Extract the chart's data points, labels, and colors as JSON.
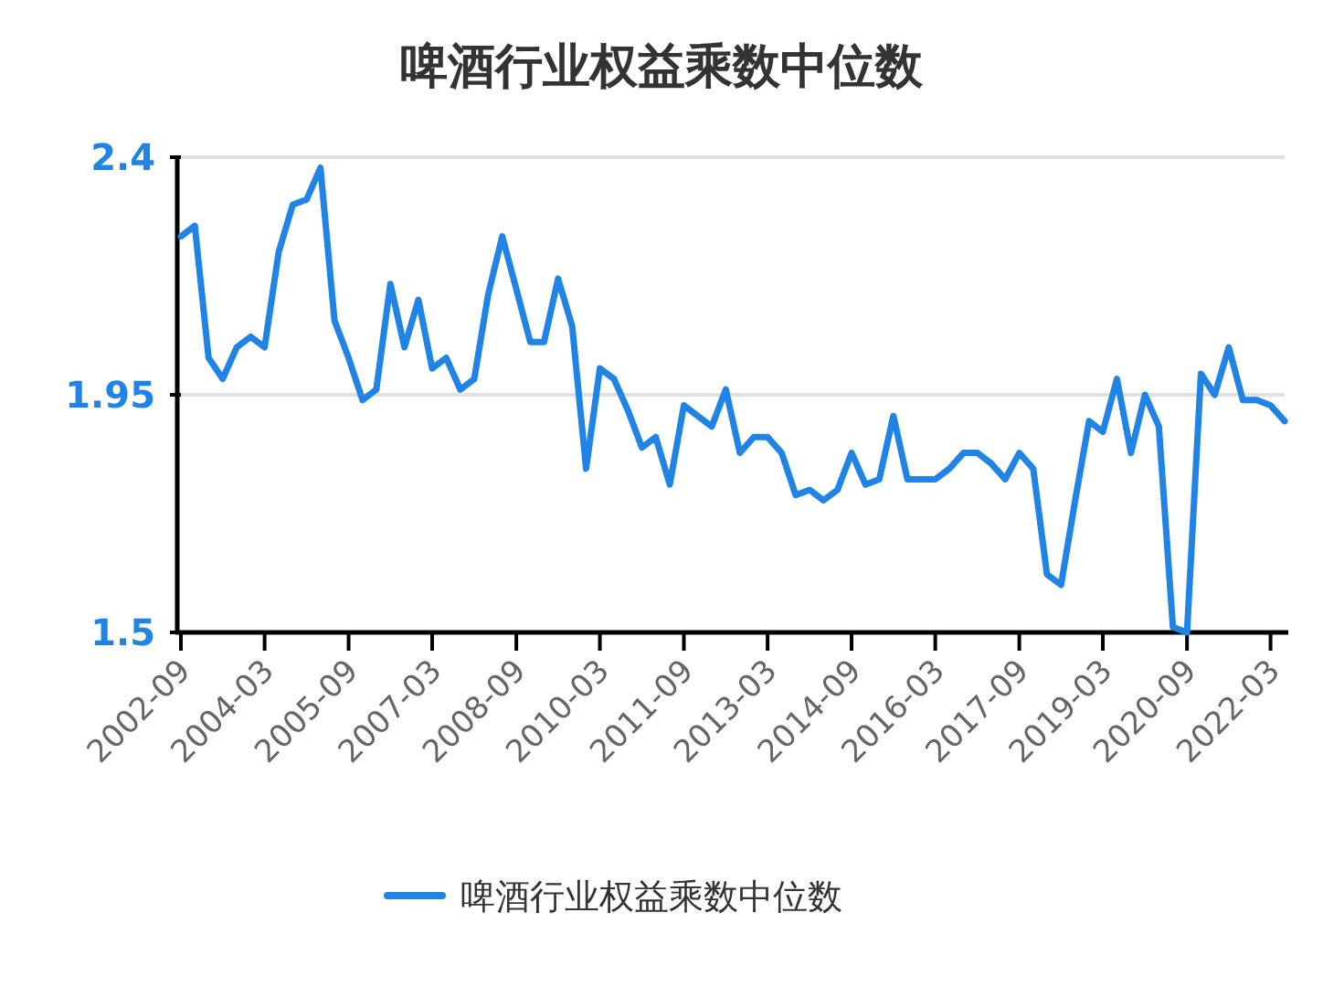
{
  "chart_data": {
    "type": "line",
    "title": "啤酒行业权益乘数中位数",
    "x": [
      "2002-09",
      "2002-12",
      "2003-03",
      "2003-06",
      "2003-09",
      "2003-12",
      "2004-03",
      "2004-06",
      "2004-09",
      "2004-12",
      "2005-03",
      "2005-06",
      "2005-09",
      "2005-12",
      "2006-03",
      "2006-06",
      "2006-09",
      "2006-12",
      "2007-03",
      "2007-06",
      "2007-09",
      "2007-12",
      "2008-03",
      "2008-06",
      "2008-09",
      "2008-12",
      "2009-03",
      "2009-06",
      "2009-09",
      "2009-12",
      "2010-03",
      "2010-06",
      "2010-09",
      "2010-12",
      "2011-03",
      "2011-06",
      "2011-09",
      "2011-12",
      "2012-03",
      "2012-06",
      "2012-09",
      "2012-12",
      "2013-03",
      "2013-06",
      "2013-09",
      "2013-12",
      "2014-03",
      "2014-06",
      "2014-09",
      "2014-12",
      "2015-03",
      "2015-06",
      "2015-09",
      "2015-12",
      "2016-03",
      "2016-06",
      "2016-09",
      "2016-12",
      "2017-03",
      "2017-06",
      "2017-09",
      "2017-12",
      "2018-03",
      "2018-06",
      "2018-09",
      "2018-12",
      "2019-03",
      "2019-06",
      "2019-09",
      "2019-12",
      "2020-03",
      "2020-06",
      "2020-09",
      "2020-12",
      "2021-03",
      "2021-06",
      "2021-09",
      "2021-12",
      "2022-03",
      "2022-06"
    ],
    "xlim": [
      "2002-09",
      "2022-06"
    ],
    "xticks": [
      "2002-09",
      "2004-03",
      "2005-09",
      "2007-03",
      "2008-09",
      "2010-03",
      "2011-09",
      "2013-03",
      "2014-09",
      "2016-03",
      "2017-09",
      "2019-03",
      "2020-09",
      "2022-03"
    ],
    "series": [
      {
        "name": "啤酒行业权益乘数中位数",
        "color": "#1f84e6",
        "values": [
          2.25,
          2.27,
          2.02,
          1.98,
          2.04,
          2.06,
          2.04,
          2.22,
          2.31,
          2.32,
          2.38,
          2.09,
          2.02,
          1.94,
          1.96,
          2.16,
          2.04,
          2.13,
          2.0,
          2.02,
          1.96,
          1.98,
          2.14,
          2.25,
          2.15,
          2.05,
          2.05,
          2.17,
          2.08,
          1.81,
          2.0,
          1.98,
          1.92,
          1.85,
          1.87,
          1.78,
          1.93,
          1.91,
          1.89,
          1.96,
          1.84,
          1.87,
          1.87,
          1.84,
          1.76,
          1.77,
          1.75,
          1.77,
          1.84,
          1.78,
          1.79,
          1.91,
          1.79,
          1.79,
          1.79,
          1.81,
          1.84,
          1.84,
          1.82,
          1.79,
          1.84,
          1.81,
          1.61,
          1.59,
          1.75,
          1.9,
          1.88,
          1.98,
          1.84,
          1.95,
          1.89,
          1.51,
          1.5,
          1.99,
          1.95,
          2.04,
          1.94,
          1.94,
          1.93,
          1.9
        ]
      }
    ],
    "ylim": [
      1.5,
      2.4
    ],
    "yticks": [
      1.5,
      1.95,
      2.4
    ],
    "grid": "y",
    "legend": "bottom",
    "marker": "none",
    "line_style": "solid"
  }
}
